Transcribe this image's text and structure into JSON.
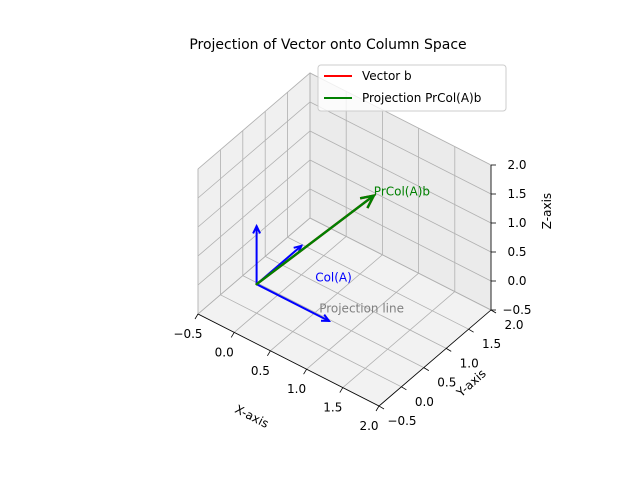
{
  "chart_data": {
    "type": "line",
    "title": "Projection of Vector onto Column Space",
    "xlabel": "X-axis",
    "ylabel": "Y-axis",
    "zlabel": "Z-axis",
    "xlim": [
      -0.5,
      2.0
    ],
    "ylim": [
      -0.5,
      2.0
    ],
    "zlim": [
      -0.5,
      2.0
    ],
    "x_ticks": [
      "−0.5",
      "0.0",
      "0.5",
      "1.0",
      "1.5",
      "2.0"
    ],
    "y_ticks": [
      "−0.5",
      "0.0",
      "0.5",
      "1.0",
      "1.5",
      "2.0"
    ],
    "z_ticks": [
      "−0.5",
      "0.0",
      "0.5",
      "1.0",
      "1.5",
      "2.0"
    ],
    "grid": true,
    "legend_position": "top-right",
    "series": [
      {
        "name": "Vector b",
        "color": "#ff0000",
        "start": [
          0,
          0,
          0
        ],
        "end": [
          1,
          1,
          1.5
        ]
      },
      {
        "name": "Projection PrCol(A)b",
        "color": "#008000",
        "start": [
          0,
          0,
          0
        ],
        "end": [
          1,
          1,
          1.5
        ]
      }
    ],
    "column_vectors": [
      {
        "color": "#0000ff",
        "start": [
          0,
          0,
          0
        ],
        "end": [
          1,
          0,
          0
        ]
      },
      {
        "color": "#0000ff",
        "start": [
          0,
          0,
          0
        ],
        "end": [
          0,
          1,
          0
        ]
      },
      {
        "color": "#0000ff",
        "start": [
          0,
          0,
          0
        ],
        "end": [
          0,
          0,
          1
        ]
      }
    ],
    "annotations": [
      {
        "text": "PrCol(A)b",
        "color": "#008000",
        "at": [
          1,
          1,
          1.5
        ]
      },
      {
        "text": "Col(A)",
        "color": "#0000ff",
        "at": [
          0.5,
          0.5,
          0
        ]
      },
      {
        "text": "Projection line",
        "color": "#808080",
        "at": [
          0.5,
          0.5,
          -0.5
        ]
      }
    ]
  }
}
